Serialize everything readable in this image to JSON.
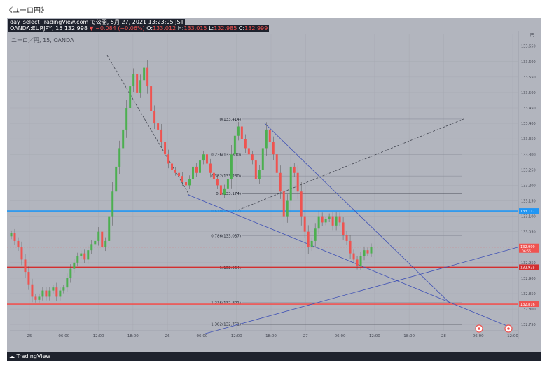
{
  "caption": "《ユーロ円》",
  "header": {
    "line1": "day_select TradingView.com で公開, 5月 27, 2021 13:23:05 JST",
    "prefix": "OANDA:EURJPY, 15 132.998",
    "change": "▼ −0.084 (−0.06%)",
    "o_label": "O:",
    "o_value": "133.012",
    "h_label": "H:",
    "h_value": "133.015",
    "l_label": "L:",
    "l_value": "132.985",
    "c_label": "C:",
    "c_value": "132.999"
  },
  "symbol_label": "ユーロ／円, 15, OANDA",
  "currency_label": "円",
  "brand": "TradingView",
  "chart_data": {
    "type": "candlestick",
    "ylim": [
      132.73,
      133.69
    ],
    "y_ticks": [
      "133.650",
      "133.600",
      "133.550",
      "133.500",
      "133.450",
      "133.400",
      "133.350",
      "133.300",
      "133.250",
      "133.200",
      "133.150",
      "133.100",
      "133.050",
      "133.000",
      "132.950",
      "132.900",
      "132.850",
      "132.800",
      "132.750"
    ],
    "x_labels": [
      "25",
      "06:00",
      "12:00",
      "18:00",
      "26",
      "06:00",
      "12:00",
      "18:00",
      "27",
      "06:00",
      "12:00",
      "18:00",
      "28",
      "06:00",
      "12:00"
    ],
    "close_path": [
      [
        0,
        133.045
      ],
      [
        1,
        133.02
      ],
      [
        2,
        133.0
      ],
      [
        3,
        132.96
      ],
      [
        4,
        132.92
      ],
      [
        5,
        132.88
      ],
      [
        6,
        132.84
      ],
      [
        7,
        132.83
      ],
      [
        8,
        132.84
      ],
      [
        9,
        132.86
      ],
      [
        10,
        132.84
      ],
      [
        11,
        132.86
      ],
      [
        12,
        132.87
      ],
      [
        13,
        132.84
      ],
      [
        14,
        132.86
      ],
      [
        15,
        132.87
      ],
      [
        16,
        132.9
      ],
      [
        17,
        132.93
      ],
      [
        18,
        132.95
      ],
      [
        19,
        132.97
      ],
      [
        20,
        132.98
      ],
      [
        21,
        132.96
      ],
      [
        22,
        132.99
      ],
      [
        23,
        133.01
      ],
      [
        24,
        133.02
      ],
      [
        25,
        133.05
      ],
      [
        26,
        133.0
      ],
      [
        27,
        133.02
      ],
      [
        28,
        133.1
      ],
      [
        29,
        133.18
      ],
      [
        30,
        133.26
      ],
      [
        31,
        133.32
      ],
      [
        32,
        133.38
      ],
      [
        33,
        133.45
      ],
      [
        34,
        133.52
      ],
      [
        35,
        133.56
      ],
      [
        36,
        133.5
      ],
      [
        37,
        133.54
      ],
      [
        38,
        133.58
      ],
      [
        39,
        133.52
      ],
      [
        40,
        133.44
      ],
      [
        41,
        133.4
      ],
      [
        42,
        133.38
      ],
      [
        43,
        133.34
      ],
      [
        44,
        133.3
      ],
      [
        45,
        133.27
      ],
      [
        46,
        133.25
      ],
      [
        47,
        133.24
      ],
      [
        48,
        133.23
      ],
      [
        49,
        133.21
      ],
      [
        50,
        133.2
      ],
      [
        51,
        133.22
      ],
      [
        52,
        133.26
      ],
      [
        53,
        133.24
      ],
      [
        54,
        133.28
      ],
      [
        55,
        133.3
      ],
      [
        56,
        133.27
      ],
      [
        57,
        133.24
      ],
      [
        58,
        133.22
      ],
      [
        59,
        133.2
      ],
      [
        60,
        133.17
      ],
      [
        61,
        133.19
      ],
      [
        62,
        133.22
      ],
      [
        63,
        133.3
      ],
      [
        64,
        133.36
      ],
      [
        65,
        133.39
      ],
      [
        66,
        133.35
      ],
      [
        67,
        133.32
      ],
      [
        68,
        133.3
      ],
      [
        69,
        133.28
      ],
      [
        70,
        133.22
      ],
      [
        71,
        133.25
      ],
      [
        72,
        133.32
      ],
      [
        73,
        133.38
      ],
      [
        74,
        133.34
      ],
      [
        75,
        133.3
      ],
      [
        76,
        133.24
      ],
      [
        77,
        133.18
      ],
      [
        78,
        133.1
      ],
      [
        79,
        133.15
      ],
      [
        80,
        133.26
      ],
      [
        81,
        133.24
      ],
      [
        82,
        133.18
      ],
      [
        83,
        133.1
      ],
      [
        84,
        133.05
      ],
      [
        85,
        133.0
      ],
      [
        86,
        133.02
      ],
      [
        87,
        133.06
      ],
      [
        88,
        133.1
      ],
      [
        89,
        133.08
      ],
      [
        90,
        133.09
      ],
      [
        91,
        133.1
      ],
      [
        92,
        133.07
      ],
      [
        93,
        133.1
      ],
      [
        94,
        133.08
      ],
      [
        95,
        133.04
      ],
      [
        96,
        133.02
      ],
      [
        97,
        132.98
      ],
      [
        98,
        132.96
      ],
      [
        99,
        132.94
      ],
      [
        100,
        132.97
      ],
      [
        101,
        132.99
      ],
      [
        102,
        132.98
      ],
      [
        103,
        133.0
      ]
    ],
    "fib_levels": [
      {
        "label": "0(133.414)",
        "price": 133.414
      },
      {
        "label": "0.236(133.300)",
        "price": 133.3
      },
      {
        "label": "0.382(133.230)",
        "price": 133.23
      },
      {
        "label": "0.5(133.174)",
        "price": 133.174
      },
      {
        "label": "0.618(133.117)",
        "price": 133.117
      },
      {
        "label": "0.786(133.037)",
        "price": 133.037
      },
      {
        "label": "1(132.934)",
        "price": 132.934
      },
      {
        "label": "1.236(132.821)",
        "price": 132.821
      },
      {
        "label": "1.382(132.751)",
        "price": 132.751
      }
    ],
    "horizontal_lines": [
      {
        "price": 133.117,
        "color": "#2196f3",
        "label": "133.117"
      },
      {
        "price": 132.935,
        "color": "#d32f2f",
        "label": "132.935"
      },
      {
        "price": 132.816,
        "color": "#ef5350",
        "label": "132.816"
      }
    ],
    "current_price": {
      "label": "132.999",
      "countdown": "06:56",
      "color": "#ef5350"
    },
    "colors": {
      "up": "#4caf50",
      "down": "#ef5350",
      "wick": "#555555"
    }
  }
}
